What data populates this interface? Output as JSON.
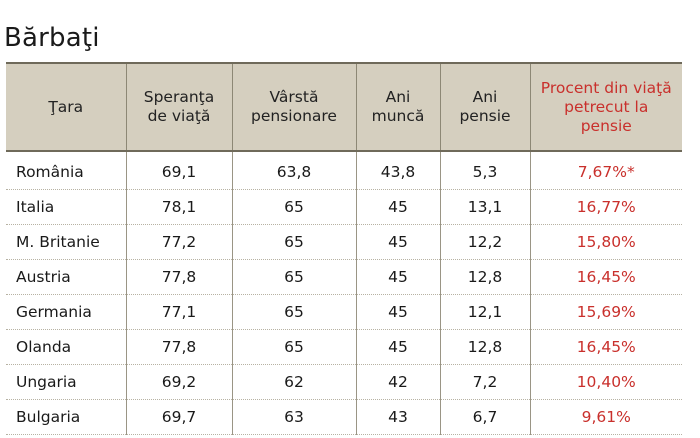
{
  "title": "Bărbaţi",
  "accent_color": "#c9302c",
  "header_bg_color": "#d5cfbf",
  "table": {
    "headers": [
      "Ţara",
      "Speranţa de viaţă",
      "Vârstă pensionare",
      "Ani muncă",
      "Ani pensie",
      "Procent din viaţă petrecut la pensie"
    ],
    "rows": [
      [
        "România",
        "69,1",
        "63,8",
        "43,8",
        "5,3",
        "7,67%*"
      ],
      [
        "Italia",
        "78,1",
        "65",
        "45",
        "13,1",
        "16,77%"
      ],
      [
        "M. Britanie",
        "77,2",
        "65",
        "45",
        "12,2",
        "15,80%"
      ],
      [
        "Austria",
        "77,8",
        "65",
        "45",
        "12,8",
        "16,45%"
      ],
      [
        "Germania",
        "77,1",
        "65",
        "45",
        "12,1",
        "15,69%"
      ],
      [
        "Olanda",
        "77,8",
        "65",
        "45",
        "12,8",
        "16,45%"
      ],
      [
        "Ungaria",
        "69,2",
        "62",
        "42",
        "7,2",
        "10,40%"
      ],
      [
        "Bulgaria",
        "69,7",
        "63",
        "43",
        "6,7",
        "9,61%"
      ]
    ]
  }
}
